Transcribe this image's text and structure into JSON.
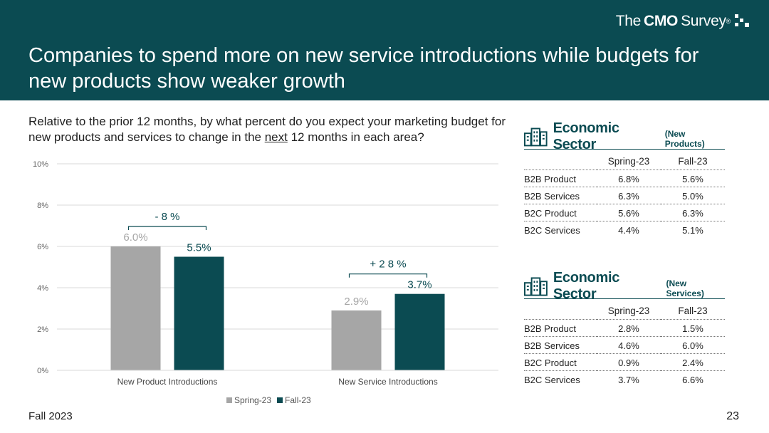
{
  "header": {
    "brand": {
      "the": "The",
      "cmo": "CMO",
      "survey": "Survey",
      "reg": "®"
    },
    "title": "Companies to spend more on new service introductions while budgets for new products show weaker growth"
  },
  "question": {
    "part1": "Relative to the prior 12 months, by what percent do you expect your marketing budget for new products and services to change in the ",
    "underlined": "next",
    "part2": " 12 months in each area?"
  },
  "chart_data": {
    "type": "bar",
    "categories": [
      "New Product Introductions",
      "New Service Introductions"
    ],
    "series": [
      {
        "name": "Spring-23",
        "values": [
          6.0,
          2.9
        ],
        "labels": [
          "6.0%",
          "2.9%"
        ],
        "color": "#a6a6a6"
      },
      {
        "name": "Fall-23",
        "values": [
          5.5,
          3.7
        ],
        "labels": [
          "5.5%",
          "3.7%"
        ],
        "color": "#0b4b52"
      }
    ],
    "ylim": [
      0,
      10
    ],
    "yticks": [
      "0%",
      "2%",
      "4%",
      "6%",
      "8%",
      "10%"
    ],
    "ytick_values": [
      0,
      2,
      4,
      6,
      8,
      10
    ],
    "annotations": [
      "- 8 %",
      "+ 2 8 %"
    ],
    "grid": true,
    "legend": "bottom"
  },
  "colors": {
    "teal": "#0b4b52",
    "grey": "#a6a6a6"
  },
  "tables": [
    {
      "title": "Economic Sector",
      "subtitle": "(New Products)",
      "icon": "building-icon",
      "columns": [
        "Spring-23",
        "Fall-23"
      ],
      "rows": [
        {
          "label": "B2B Product",
          "values": [
            "6.8%",
            "5.6%"
          ]
        },
        {
          "label": "B2B Services",
          "values": [
            "6.3%",
            "5.0%"
          ]
        },
        {
          "label": "B2C Product",
          "values": [
            "5.6%",
            "6.3%"
          ]
        },
        {
          "label": "B2C Services",
          "values": [
            "4.4%",
            "5.1%"
          ]
        }
      ]
    },
    {
      "title": "Economic Sector",
      "subtitle": "(New Services)",
      "icon": "building-icon",
      "columns": [
        "Spring-23",
        "Fall-23"
      ],
      "rows": [
        {
          "label": "B2B Product",
          "values": [
            "2.8%",
            "1.5%"
          ]
        },
        {
          "label": "B2B Services",
          "values": [
            "4.6%",
            "6.0%"
          ]
        },
        {
          "label": "B2C Product",
          "values": [
            "0.9%",
            "2.4%"
          ]
        },
        {
          "label": "B2C Services",
          "values": [
            "3.7%",
            "6.6%"
          ]
        }
      ]
    }
  ],
  "footer": {
    "left": "Fall 2023",
    "page": "23"
  }
}
